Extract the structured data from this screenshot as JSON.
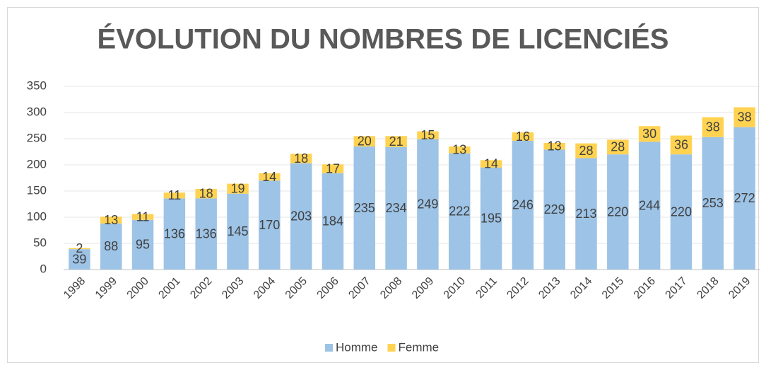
{
  "chart_data": {
    "type": "stacked_bar",
    "title": "ÉVOLUTION DU NOMBRES DE LICENCIÉS",
    "categories": [
      "1998",
      "1999",
      "2000",
      "2001",
      "2002",
      "2003",
      "2004",
      "2005",
      "2006",
      "2007",
      "2008",
      "2009",
      "2010",
      "2011",
      "2012",
      "2013",
      "2014",
      "2015",
      "2016",
      "2017",
      "2018",
      "2019"
    ],
    "series": [
      {
        "name": "Homme",
        "color": "#9dc3e6",
        "values": [
          39,
          88,
          95,
          136,
          136,
          145,
          170,
          203,
          184,
          235,
          234,
          249,
          222,
          195,
          246,
          229,
          213,
          220,
          244,
          220,
          253,
          272
        ]
      },
      {
        "name": "Femme",
        "color": "#ffd351",
        "values": [
          2,
          13,
          11,
          11,
          18,
          19,
          14,
          18,
          17,
          20,
          21,
          15,
          13,
          14,
          16,
          13,
          28,
          28,
          30,
          36,
          38,
          38
        ]
      }
    ],
    "ylim": [
      0,
      350
    ],
    "yticks": [
      0,
      50,
      100,
      150,
      200,
      250,
      300,
      350
    ],
    "grid": true,
    "legend": "bottom"
  }
}
